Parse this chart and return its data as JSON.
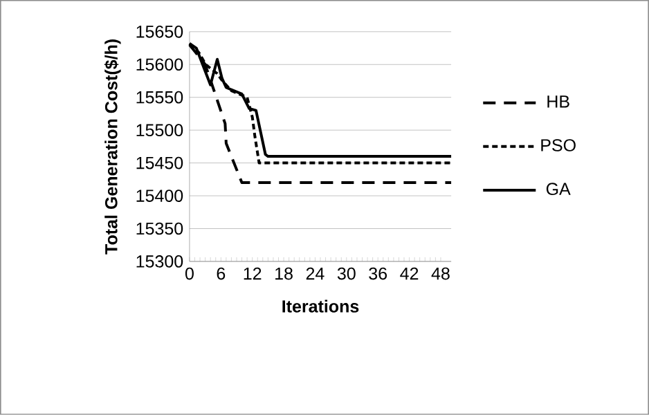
{
  "chart_data": {
    "type": "line",
    "xlabel": "Iterations",
    "ylabel": "Total Generation Cost($/h)",
    "xlim": [
      0,
      50
    ],
    "xticks": [
      0,
      6,
      12,
      18,
      24,
      30,
      36,
      42,
      48
    ],
    "ylim": [
      15300,
      15650
    ],
    "yticks": [
      15300,
      15350,
      15400,
      15450,
      15500,
      15550,
      15600,
      15650
    ],
    "grid": "y",
    "legend": "right",
    "series": [
      {
        "name": "HB",
        "color": "#000000",
        "line_style": "dashed",
        "x": [
          0,
          3,
          6.8,
          7,
          10,
          50
        ],
        "values": [
          15630,
          15600,
          15510,
          15480,
          15420,
          15420
        ]
      },
      {
        "name": "PSO",
        "color": "#000000",
        "line_style": "dotted",
        "x": [
          0,
          1.8,
          3.1,
          5.3,
          6.2,
          8,
          11,
          12,
          12.5,
          13.3,
          50
        ],
        "values": [
          15632,
          15618,
          15600,
          15586,
          15576,
          15560,
          15550,
          15520,
          15490,
          15450,
          15450
        ]
      },
      {
        "name": "GA",
        "color": "#000000",
        "line_style": "solid",
        "x": [
          0,
          1.3,
          4,
          5.3,
          6.2,
          7,
          10,
          11.4,
          12.7,
          14.5,
          15,
          50
        ],
        "values": [
          15632,
          15625,
          15569,
          15608,
          15579,
          15565,
          15555,
          15533,
          15530,
          15463,
          15460,
          15460
        ]
      }
    ]
  }
}
